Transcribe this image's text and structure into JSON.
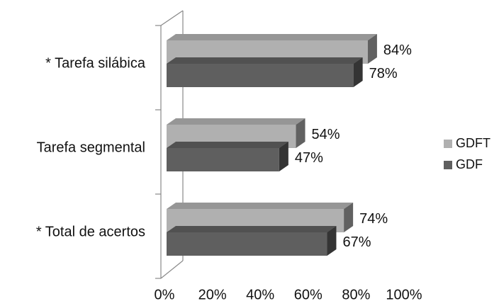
{
  "chart_data": {
    "type": "bar",
    "orientation": "horizontal",
    "three_d": true,
    "categories": [
      "* Tarefa silábica",
      "Tarefa segmental",
      "* Total de acertos"
    ],
    "series": [
      {
        "name": "GDFT",
        "values": [
          84,
          54,
          74
        ],
        "labels": [
          "84%",
          "54%",
          "74%"
        ],
        "color": "#b0b0b0"
      },
      {
        "name": "GDF",
        "values": [
          78,
          47,
          67
        ],
        "labels": [
          "78%",
          "47%",
          "67%"
        ],
        "color": "#5f5f5f"
      }
    ],
    "x_ticks": [
      "0%",
      "20%",
      "40%",
      "60%",
      "80%",
      "100%"
    ],
    "xlim": [
      0,
      100
    ],
    "grid": false,
    "legend_position": "right",
    "title": "",
    "xlabel": "",
    "ylabel": ""
  }
}
